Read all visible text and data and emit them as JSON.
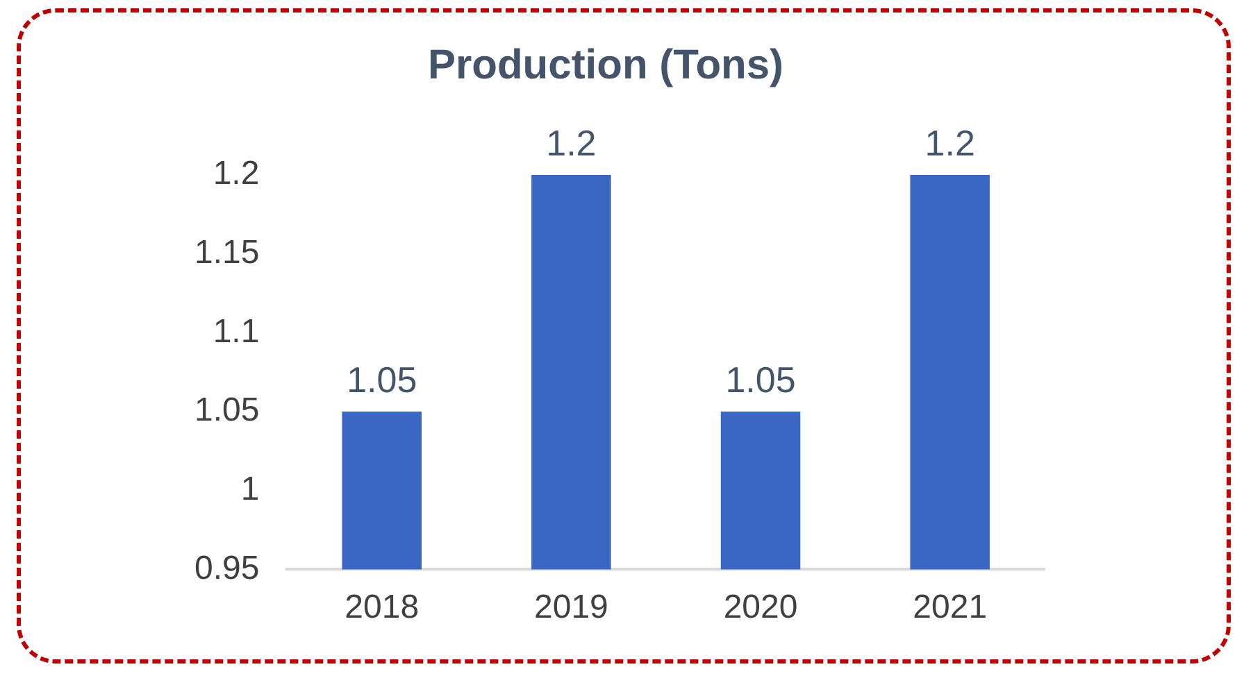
{
  "chart_data": {
    "type": "bar",
    "title": "Production (Tons)",
    "categories": [
      "2018",
      "2019",
      "2020",
      "2021"
    ],
    "values": [
      1.05,
      1.2,
      1.05,
      1.2
    ],
    "color": "#3a66c4",
    "ylim": [
      0.95,
      1.2
    ],
    "yticks": [
      0.95,
      1,
      1.05,
      1.1,
      1.15,
      1.2
    ],
    "grid": false,
    "data_labels": true
  }
}
